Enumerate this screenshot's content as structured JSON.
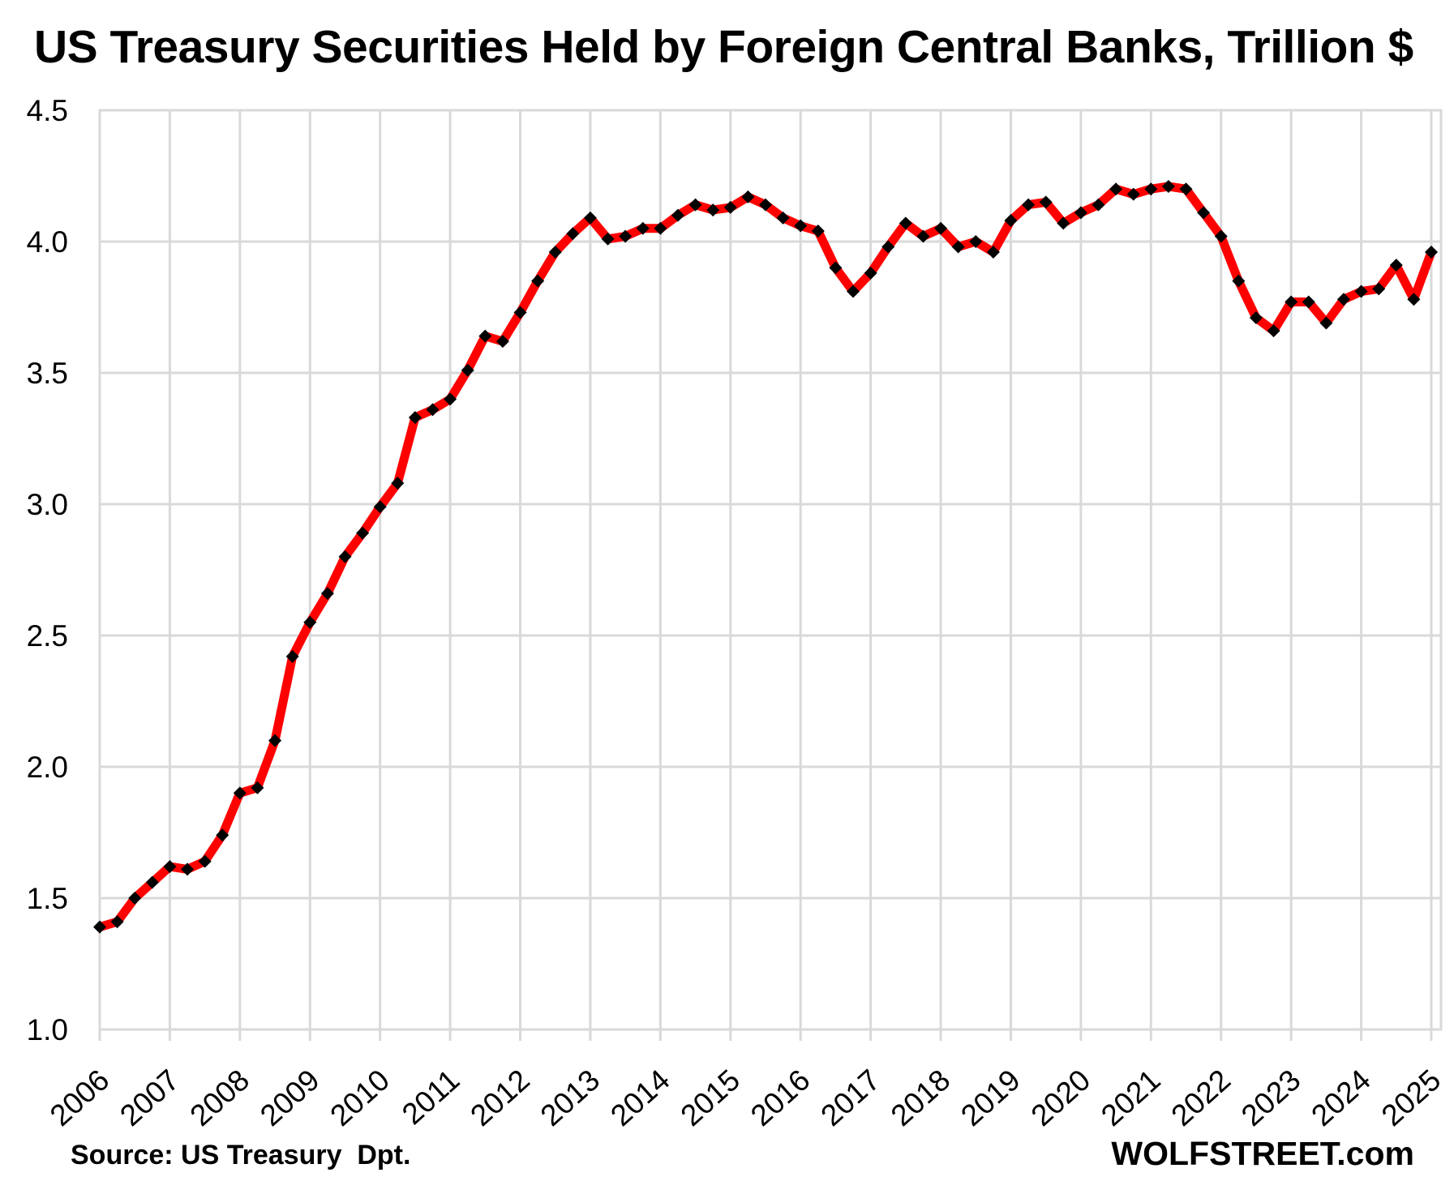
{
  "chart_data": {
    "type": "line",
    "title": "US Treasury Securities Held by Foreign Central Banks, Trillion $",
    "source_note": "Source: US Treasury  Dpt.",
    "watermark": "WOLFSTREET.com",
    "frequency": "quarterly",
    "start": "2006-Q1",
    "end": "2025-Q1",
    "x_tick_labels": [
      "2006",
      "2007",
      "2008",
      "2009",
      "2010",
      "2011",
      "2012",
      "2013",
      "2014",
      "2015",
      "2016",
      "2017",
      "2018",
      "2019",
      "2020",
      "2021",
      "2022",
      "2023",
      "2024",
      "2025"
    ],
    "y_tick_labels": [
      "1.0",
      "1.5",
      "2.0",
      "2.5",
      "3.0",
      "3.5",
      "4.0",
      "4.5"
    ],
    "ylim": [
      1.0,
      4.5
    ],
    "grid": true,
    "colors": {
      "line": "#ff0000",
      "marker": "#000000",
      "grid": "#d9d9d9",
      "text": "#000000",
      "background": "#ffffff"
    },
    "series": [
      {
        "name": "US Treasury securities held by foreign central banks, trillion USD",
        "marker": "diamond",
        "values": [
          1.39,
          1.41,
          1.5,
          1.56,
          1.62,
          1.61,
          1.64,
          1.74,
          1.9,
          1.92,
          2.1,
          2.42,
          2.55,
          2.66,
          2.8,
          2.89,
          2.99,
          3.08,
          3.33,
          3.36,
          3.4,
          3.51,
          3.64,
          3.62,
          3.73,
          3.85,
          3.96,
          4.03,
          4.09,
          4.01,
          4.02,
          4.05,
          4.05,
          4.1,
          4.14,
          4.12,
          4.13,
          4.17,
          4.14,
          4.09,
          4.06,
          4.04,
          3.9,
          3.81,
          3.88,
          3.98,
          4.07,
          4.02,
          4.05,
          3.98,
          4.0,
          3.96,
          4.08,
          4.14,
          4.15,
          4.07,
          4.11,
          4.14,
          4.2,
          4.18,
          4.2,
          4.21,
          4.2,
          4.11,
          4.02,
          3.85,
          3.71,
          3.66,
          3.77,
          3.77,
          3.69,
          3.78,
          3.81,
          3.82,
          3.91,
          3.78,
          3.96
        ]
      }
    ]
  }
}
